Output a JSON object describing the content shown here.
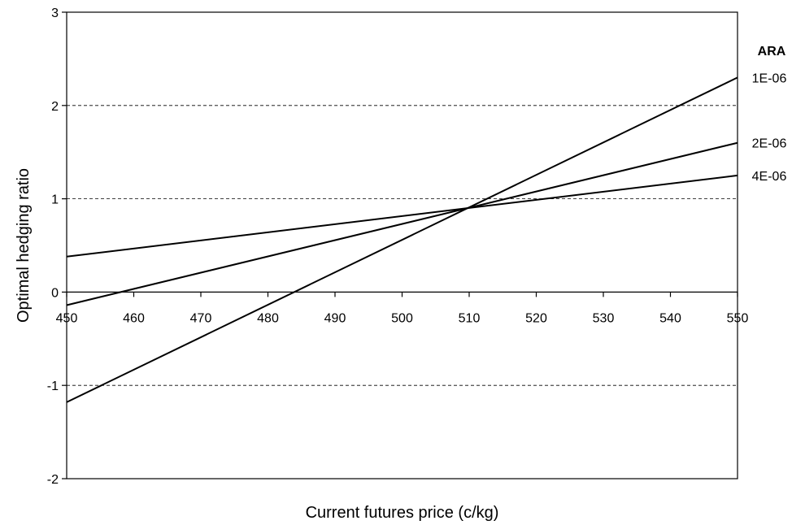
{
  "chart_data": {
    "type": "line",
    "title": "",
    "xlabel": "Current futures price (c/kg)",
    "ylabel": "Optimal hedging ratio",
    "xlim": [
      450,
      550
    ],
    "ylim": [
      -2,
      3
    ],
    "x_ticks": [
      450,
      460,
      470,
      480,
      490,
      500,
      510,
      520,
      530,
      540,
      550
    ],
    "y_ticks": [
      -2,
      -1,
      0,
      1,
      2,
      3
    ],
    "grid": "horizontal dashed",
    "legend_title": "ARA",
    "legend_placement": "right, next to line ends",
    "series": [
      {
        "name": "1E-06",
        "x": [
          450,
          550
        ],
        "y": [
          -1.18,
          2.3
        ]
      },
      {
        "name": "2E-06",
        "x": [
          450,
          550
        ],
        "y": [
          -0.14,
          1.6
        ]
      },
      {
        "name": "4E-06",
        "x": [
          450,
          550
        ],
        "y": [
          0.38,
          1.25
        ]
      }
    ],
    "colors": {
      "line": "#000000",
      "grid": "#000000",
      "background": "#ffffff"
    }
  }
}
